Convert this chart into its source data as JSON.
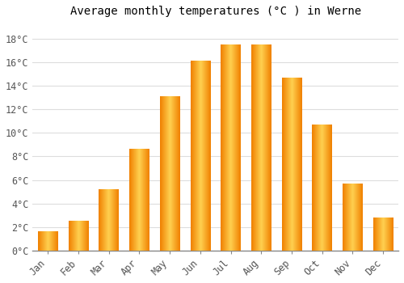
{
  "title": "Average monthly temperatures (°C ) in Werne",
  "months": [
    "Jan",
    "Feb",
    "Mar",
    "Apr",
    "May",
    "Jun",
    "Jul",
    "Aug",
    "Sep",
    "Oct",
    "Nov",
    "Dec"
  ],
  "values": [
    1.6,
    2.5,
    5.2,
    8.6,
    13.1,
    16.1,
    17.5,
    17.5,
    14.7,
    10.7,
    5.7,
    2.8
  ],
  "bar_color": "#FFAA00",
  "bar_color_light": "#FFD050",
  "bar_color_dark": "#F08000",
  "background_color": "#FFFFFF",
  "grid_color": "#DDDDDD",
  "yticks": [
    0,
    2,
    4,
    6,
    8,
    10,
    12,
    14,
    16,
    18
  ],
  "ylim": [
    0,
    19.5
  ],
  "title_fontsize": 10,
  "tick_fontsize": 8.5,
  "font_family": "monospace"
}
